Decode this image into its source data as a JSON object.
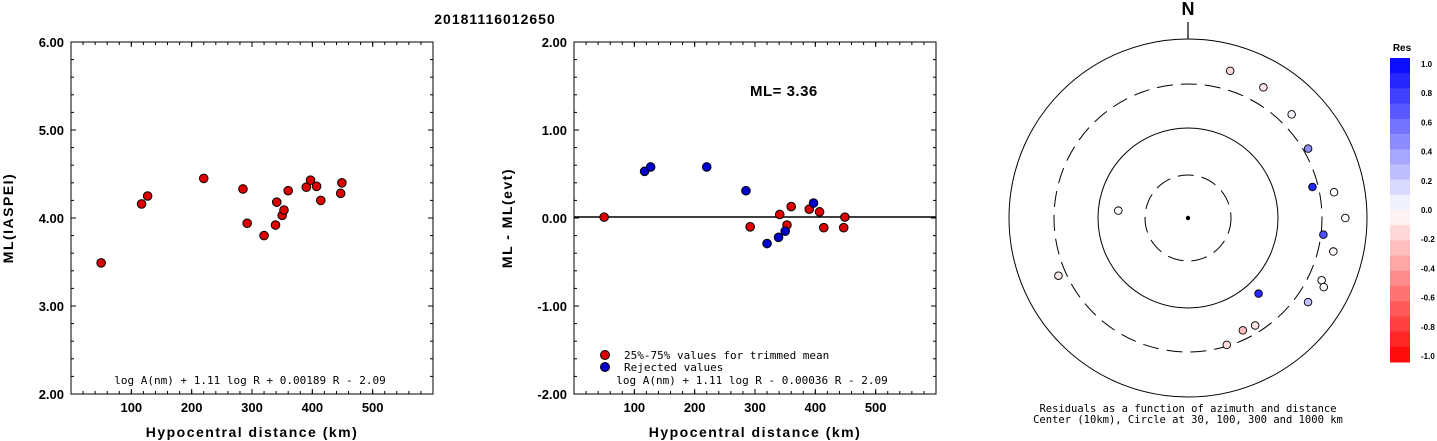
{
  "page_title": "20181116012650",
  "chart_data": [
    {
      "type": "scatter",
      "title": "",
      "xlabel": "Hypocentral distance (km)",
      "ylabel": "ML(IASPEI)",
      "xlim": [
        0,
        600
      ],
      "ylim": [
        2.0,
        6.0
      ],
      "x_ticks": [
        "100",
        "200",
        "300",
        "400",
        "500"
      ],
      "y_ticks": [
        "2.00",
        "3.00",
        "4.00",
        "5.00",
        "6.00"
      ],
      "formula": "log A(nm) + 1.11 log R + 0.00189 R - 2.09",
      "marker_color": "#dd0000",
      "points": [
        {
          "x": 50,
          "y": 3.49
        },
        {
          "x": 117,
          "y": 4.16
        },
        {
          "x": 127,
          "y": 4.25
        },
        {
          "x": 220,
          "y": 4.45
        },
        {
          "x": 285,
          "y": 4.33
        },
        {
          "x": 292,
          "y": 3.94
        },
        {
          "x": 320,
          "y": 3.8
        },
        {
          "x": 339,
          "y": 3.92
        },
        {
          "x": 341,
          "y": 4.18
        },
        {
          "x": 350,
          "y": 4.03
        },
        {
          "x": 353,
          "y": 4.09
        },
        {
          "x": 360,
          "y": 4.31
        },
        {
          "x": 390,
          "y": 4.35
        },
        {
          "x": 397,
          "y": 4.43
        },
        {
          "x": 407,
          "y": 4.36
        },
        {
          "x": 414,
          "y": 4.2
        },
        {
          "x": 447,
          "y": 4.28
        },
        {
          "x": 449,
          "y": 4.4
        }
      ]
    },
    {
      "type": "scatter",
      "title": "",
      "xlabel": "Hypocentral distance (km)",
      "ylabel": "ML - ML(evt)",
      "xlim": [
        0,
        600
      ],
      "ylim": [
        -2.0,
        2.0
      ],
      "x_ticks": [
        "100",
        "200",
        "300",
        "400",
        "500"
      ],
      "y_ticks": [
        "-2.00",
        "-1.00",
        "0.00",
        "1.00",
        "2.00"
      ],
      "annotation": "ML= 3.36",
      "formula": "log A(nm) + 1.11 log R - 0.00036 R - 2.09",
      "legend": [
        {
          "label": "25%-75% values for trimmed mean",
          "color": "#dd0000"
        },
        {
          "label": "Rejected values",
          "color": "#0000cc"
        }
      ],
      "series": [
        {
          "name": "25%-75% values for trimmed mean",
          "color": "#dd0000",
          "points": [
            {
              "x": 50,
              "y": 0.01
            },
            {
              "x": 292,
              "y": -0.1
            },
            {
              "x": 341,
              "y": 0.04
            },
            {
              "x": 353,
              "y": -0.08
            },
            {
              "x": 360,
              "y": 0.13
            },
            {
              "x": 390,
              "y": 0.1
            },
            {
              "x": 407,
              "y": 0.07
            },
            {
              "x": 414,
              "y": -0.11
            },
            {
              "x": 447,
              "y": -0.11
            },
            {
              "x": 449,
              "y": 0.01
            }
          ]
        },
        {
          "name": "Rejected values",
          "color": "#0000cc",
          "points": [
            {
              "x": 117,
              "y": 0.53
            },
            {
              "x": 127,
              "y": 0.58
            },
            {
              "x": 220,
              "y": 0.58
            },
            {
              "x": 285,
              "y": 0.31
            },
            {
              "x": 320,
              "y": -0.29
            },
            {
              "x": 339,
              "y": -0.22
            },
            {
              "x": 350,
              "y": -0.15
            },
            {
              "x": 397,
              "y": 0.17
            }
          ]
        }
      ]
    },
    {
      "type": "scatter",
      "title": "N",
      "subtype": "polar-residuals",
      "caption_line1": "Residuals as a function of azimuth and distance",
      "caption_line2": "Center (10km), Circle at 30, 100, 300 and 1000 km",
      "ring_labels_km": [
        30,
        100,
        300,
        1000
      ],
      "colorbar": {
        "title": "Res",
        "ticks": [
          "1.0",
          "0.8",
          "0.6",
          "0.4",
          "0.2",
          "0.0",
          "-0.2",
          "-0.4",
          "-0.6",
          "-0.8",
          "-1.0"
        ],
        "max_color": "#0000ff",
        "min_color": "#ff0000"
      },
      "stations": [
        {
          "azimuth_deg": 16,
          "distance_km": 500,
          "residual": -0.15
        },
        {
          "azimuth_deg": 30,
          "distance_km": 470,
          "residual": -0.1
        },
        {
          "azimuth_deg": 45,
          "distance_km": 420,
          "residual": 0.04
        },
        {
          "azimuth_deg": 60,
          "distance_km": 340,
          "residual": 0.45
        },
        {
          "azimuth_deg": 76,
          "distance_km": 260,
          "residual": 0.85
        },
        {
          "azimuth_deg": 80,
          "distance_km": 440,
          "residual": 0.0
        },
        {
          "azimuth_deg": 90,
          "distance_km": 560,
          "residual": 0.0
        },
        {
          "azimuth_deg": 97,
          "distance_km": 320,
          "residual": 0.7
        },
        {
          "azimuth_deg": 103,
          "distance_km": 450,
          "residual": -0.02
        },
        {
          "azimuth_deg": 115,
          "distance_km": 430,
          "residual": -0.01
        },
        {
          "azimuth_deg": 117,
          "distance_km": 490,
          "residual": -0.02
        },
        {
          "azimuth_deg": 125,
          "distance_km": 420,
          "residual": 0.25
        },
        {
          "azimuth_deg": 137,
          "distance_km": 140,
          "residual": 0.85
        },
        {
          "azimuth_deg": 148,
          "distance_km": 250,
          "residual": -0.11
        },
        {
          "azimuth_deg": 154,
          "distance_km": 240,
          "residual": -0.25
        },
        {
          "azimuth_deg": 163,
          "distance_km": 290,
          "residual": -0.12
        },
        {
          "azimuth_deg": 246,
          "distance_km": 370,
          "residual": -0.08
        },
        {
          "azimuth_deg": 276,
          "distance_km": 60,
          "residual": 0.01
        }
      ]
    }
  ]
}
